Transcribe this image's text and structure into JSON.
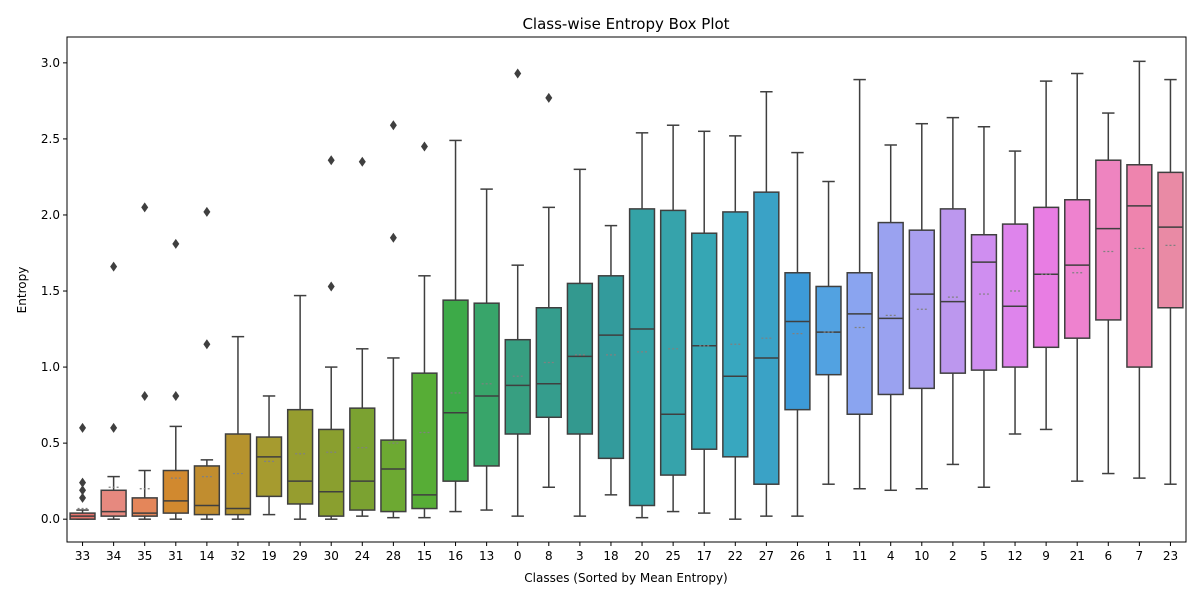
{
  "chart_data": {
    "type": "box",
    "title": "Class-wise Entropy Box Plot",
    "xlabel": "Classes (Sorted by Mean Entropy)",
    "ylabel": "Entropy",
    "ylim": [
      -0.15,
      3.17
    ],
    "yticks": [
      "0.0",
      "0.5",
      "1.0",
      "1.5",
      "2.0",
      "2.5",
      "3.0"
    ],
    "grid": false,
    "legend": "none",
    "show_means": true,
    "categories": [
      "33",
      "34",
      "35",
      "31",
      "14",
      "32",
      "19",
      "29",
      "30",
      "24",
      "28",
      "15",
      "16",
      "13",
      "0",
      "8",
      "3",
      "18",
      "20",
      "25",
      "17",
      "22",
      "27",
      "26",
      "1",
      "11",
      "4",
      "10",
      "2",
      "5",
      "12",
      "9",
      "21",
      "6",
      "7",
      "23"
    ],
    "colors": [
      "#e8756e",
      "#e6897f",
      "#e4865a",
      "#d1892f",
      "#c18d2f",
      "#b6932e",
      "#a69b2f",
      "#969d2f",
      "#8a9f2f",
      "#7ba231",
      "#6da932",
      "#57ad36",
      "#3daa48",
      "#38a56a",
      "#379f81",
      "#359d8d",
      "#33998f",
      "#339b9c",
      "#34a2a6",
      "#36a3ab",
      "#36a6b4",
      "#38a7bf",
      "#3aa2c6",
      "#3d9ad8",
      "#52a2e1",
      "#8aa4f0",
      "#9aa2f0",
      "#a99ff0",
      "#bc97ee",
      "#cf8ef0",
      "#de84ec",
      "#e87de3",
      "#ee82cf",
      "#ee84c0",
      "#ee84ae",
      "#e98aa5"
    ],
    "series": [
      {
        "name": "33",
        "whisker_low": 0.0,
        "q1": 0.0,
        "median": 0.02,
        "q3": 0.04,
        "whisker_high": 0.06,
        "mean": 0.07,
        "outliers": [
          0.14,
          0.19,
          0.24,
          0.6
        ]
      },
      {
        "name": "34",
        "whisker_low": 0.0,
        "q1": 0.02,
        "median": 0.05,
        "q3": 0.19,
        "whisker_high": 0.28,
        "mean": 0.21,
        "outliers": [
          0.6,
          1.66
        ]
      },
      {
        "name": "35",
        "whisker_low": 0.0,
        "q1": 0.02,
        "median": 0.04,
        "q3": 0.14,
        "whisker_high": 0.32,
        "mean": 0.2,
        "outliers": [
          0.81,
          2.05
        ]
      },
      {
        "name": "31",
        "whisker_low": 0.0,
        "q1": 0.04,
        "median": 0.12,
        "q3": 0.32,
        "whisker_high": 0.61,
        "mean": 0.27,
        "outliers": [
          0.81,
          1.81
        ]
      },
      {
        "name": "14",
        "whisker_low": 0.0,
        "q1": 0.03,
        "median": 0.09,
        "q3": 0.35,
        "whisker_high": 0.39,
        "mean": 0.28,
        "outliers": [
          1.15,
          2.02
        ]
      },
      {
        "name": "32",
        "whisker_low": 0.0,
        "q1": 0.03,
        "median": 0.07,
        "q3": 0.56,
        "whisker_high": 1.2,
        "mean": 0.3,
        "outliers": []
      },
      {
        "name": "19",
        "whisker_low": 0.03,
        "q1": 0.15,
        "median": 0.41,
        "q3": 0.54,
        "whisker_high": 0.81,
        "mean": 0.38,
        "outliers": []
      },
      {
        "name": "29",
        "whisker_low": 0.0,
        "q1": 0.1,
        "median": 0.25,
        "q3": 0.72,
        "whisker_high": 1.47,
        "mean": 0.43,
        "outliers": []
      },
      {
        "name": "30",
        "whisker_low": 0.0,
        "q1": 0.02,
        "median": 0.18,
        "q3": 0.59,
        "whisker_high": 1.0,
        "mean": 0.44,
        "outliers": [
          1.53,
          2.36
        ]
      },
      {
        "name": "24",
        "whisker_low": 0.02,
        "q1": 0.06,
        "median": 0.25,
        "q3": 0.73,
        "whisker_high": 1.12,
        "mean": 0.47,
        "outliers": [
          2.35
        ]
      },
      {
        "name": "28",
        "whisker_low": 0.01,
        "q1": 0.05,
        "median": 0.33,
        "q3": 0.52,
        "whisker_high": 1.06,
        "mean": 0.5,
        "outliers": [
          1.85,
          2.59
        ]
      },
      {
        "name": "15",
        "whisker_low": 0.01,
        "q1": 0.07,
        "median": 0.16,
        "q3": 0.96,
        "whisker_high": 1.6,
        "mean": 0.57,
        "outliers": [
          2.45
        ]
      },
      {
        "name": "16",
        "whisker_low": 0.05,
        "q1": 0.25,
        "median": 0.7,
        "q3": 1.44,
        "whisker_high": 2.49,
        "mean": 0.83,
        "outliers": []
      },
      {
        "name": "13",
        "whisker_low": 0.06,
        "q1": 0.35,
        "median": 0.81,
        "q3": 1.42,
        "whisker_high": 2.17,
        "mean": 0.89,
        "outliers": []
      },
      {
        "name": "0",
        "whisker_low": 0.02,
        "q1": 0.56,
        "median": 0.88,
        "q3": 1.18,
        "whisker_high": 1.67,
        "mean": 0.94,
        "outliers": [
          2.93
        ]
      },
      {
        "name": "8",
        "whisker_low": 0.21,
        "q1": 0.67,
        "median": 0.89,
        "q3": 1.39,
        "whisker_high": 2.05,
        "mean": 1.03,
        "outliers": [
          2.77
        ]
      },
      {
        "name": "3",
        "whisker_low": 0.02,
        "q1": 0.56,
        "median": 1.07,
        "q3": 1.55,
        "whisker_high": 2.3,
        "mean": 1.08,
        "outliers": []
      },
      {
        "name": "18",
        "whisker_low": 0.16,
        "q1": 0.4,
        "median": 1.21,
        "q3": 1.6,
        "whisker_high": 1.93,
        "mean": 1.08,
        "outliers": []
      },
      {
        "name": "20",
        "whisker_low": 0.01,
        "q1": 0.09,
        "median": 1.25,
        "q3": 2.04,
        "whisker_high": 2.54,
        "mean": 1.1,
        "outliers": []
      },
      {
        "name": "25",
        "whisker_low": 0.05,
        "q1": 0.29,
        "median": 0.69,
        "q3": 2.03,
        "whisker_high": 2.59,
        "mean": 1.12,
        "outliers": []
      },
      {
        "name": "17",
        "whisker_low": 0.04,
        "q1": 0.46,
        "median": 1.14,
        "q3": 1.88,
        "whisker_high": 2.55,
        "mean": 1.14,
        "outliers": []
      },
      {
        "name": "22",
        "whisker_low": 0.0,
        "q1": 0.41,
        "median": 0.94,
        "q3": 2.02,
        "whisker_high": 2.52,
        "mean": 1.15,
        "outliers": []
      },
      {
        "name": "27",
        "whisker_low": 0.02,
        "q1": 0.23,
        "median": 1.06,
        "q3": 2.15,
        "whisker_high": 2.81,
        "mean": 1.19,
        "outliers": []
      },
      {
        "name": "26",
        "whisker_low": 0.02,
        "q1": 0.72,
        "median": 1.3,
        "q3": 1.62,
        "whisker_high": 2.41,
        "mean": 1.22,
        "outliers": []
      },
      {
        "name": "1",
        "whisker_low": 0.23,
        "q1": 0.95,
        "median": 1.23,
        "q3": 1.53,
        "whisker_high": 2.22,
        "mean": 1.23,
        "outliers": []
      },
      {
        "name": "11",
        "whisker_low": 0.2,
        "q1": 0.69,
        "median": 1.35,
        "q3": 1.62,
        "whisker_high": 2.89,
        "mean": 1.26,
        "outliers": []
      },
      {
        "name": "4",
        "whisker_low": 0.19,
        "q1": 0.82,
        "median": 1.32,
        "q3": 1.95,
        "whisker_high": 2.46,
        "mean": 1.34,
        "outliers": []
      },
      {
        "name": "10",
        "whisker_low": 0.2,
        "q1": 0.86,
        "median": 1.48,
        "q3": 1.9,
        "whisker_high": 2.6,
        "mean": 1.38,
        "outliers": []
      },
      {
        "name": "2",
        "whisker_low": 0.36,
        "q1": 0.96,
        "median": 1.43,
        "q3": 2.04,
        "whisker_high": 2.64,
        "mean": 1.46,
        "outliers": []
      },
      {
        "name": "5",
        "whisker_low": 0.21,
        "q1": 0.98,
        "median": 1.69,
        "q3": 1.87,
        "whisker_high": 2.58,
        "mean": 1.48,
        "outliers": []
      },
      {
        "name": "12",
        "whisker_low": 0.56,
        "q1": 1.0,
        "median": 1.4,
        "q3": 1.94,
        "whisker_high": 2.42,
        "mean": 1.5,
        "outliers": []
      },
      {
        "name": "9",
        "whisker_low": 0.59,
        "q1": 1.13,
        "median": 1.61,
        "q3": 2.05,
        "whisker_high": 2.88,
        "mean": 1.61,
        "outliers": []
      },
      {
        "name": "21",
        "whisker_low": 0.25,
        "q1": 1.19,
        "median": 1.67,
        "q3": 2.1,
        "whisker_high": 2.93,
        "mean": 1.62,
        "outliers": []
      },
      {
        "name": "6",
        "whisker_low": 0.3,
        "q1": 1.31,
        "median": 1.91,
        "q3": 2.36,
        "whisker_high": 2.67,
        "mean": 1.76,
        "outliers": []
      },
      {
        "name": "7",
        "whisker_low": 0.27,
        "q1": 1.0,
        "median": 2.06,
        "q3": 2.33,
        "whisker_high": 3.01,
        "mean": 1.78,
        "outliers": []
      },
      {
        "name": "23",
        "whisker_low": 0.23,
        "q1": 1.39,
        "median": 1.92,
        "q3": 2.28,
        "whisker_high": 2.89,
        "mean": 1.8,
        "outliers": []
      }
    ]
  }
}
